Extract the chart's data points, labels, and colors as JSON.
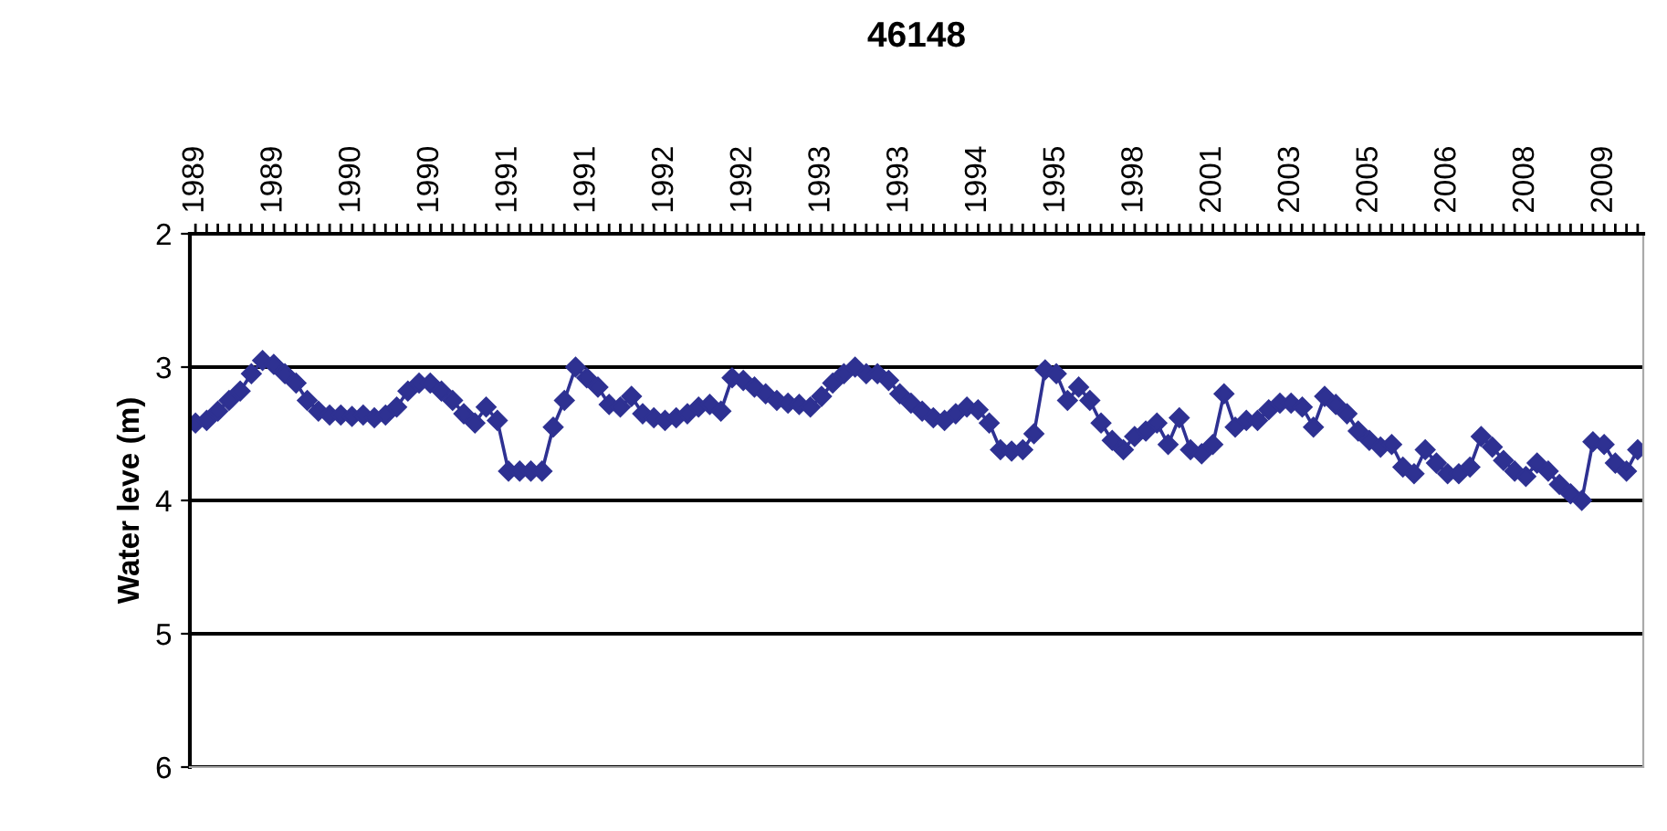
{
  "chart_data": {
    "type": "line",
    "title": "46148",
    "ylabel": "Water leve (m)",
    "categories": [
      "1989",
      null,
      null,
      null,
      null,
      null,
      null,
      "1989",
      null,
      null,
      null,
      null,
      null,
      null,
      "1990",
      null,
      null,
      null,
      null,
      null,
      null,
      "1990",
      null,
      null,
      null,
      null,
      null,
      null,
      "1991",
      null,
      null,
      null,
      null,
      null,
      null,
      "1991",
      null,
      null,
      null,
      null,
      null,
      null,
      "1992",
      null,
      null,
      null,
      null,
      null,
      null,
      "1992",
      null,
      null,
      null,
      null,
      null,
      null,
      "1993",
      null,
      null,
      null,
      null,
      null,
      null,
      "1993",
      null,
      null,
      null,
      null,
      null,
      null,
      "1994",
      null,
      null,
      null,
      null,
      null,
      null,
      "1995",
      null,
      null,
      null,
      null,
      null,
      null,
      "1998",
      null,
      null,
      null,
      null,
      null,
      null,
      "2001",
      null,
      null,
      null,
      null,
      null,
      null,
      "2003",
      null,
      null,
      null,
      null,
      null,
      null,
      "2005",
      null,
      null,
      null,
      null,
      null,
      null,
      "2006",
      null,
      null,
      null,
      null,
      null,
      null,
      "2008",
      null,
      null,
      null,
      null,
      null,
      null,
      "2009",
      null,
      null,
      null
    ],
    "series": [
      {
        "color": "#2e3192",
        "values": [
          3.42,
          3.4,
          3.33,
          3.25,
          3.18,
          3.05,
          2.95,
          2.98,
          3.05,
          3.12,
          3.25,
          3.33,
          3.36,
          3.36,
          3.37,
          3.36,
          3.38,
          3.36,
          3.3,
          3.18,
          3.12,
          3.12,
          3.18,
          3.25,
          3.35,
          3.42,
          3.3,
          3.4,
          3.78,
          3.78,
          3.78,
          3.78,
          3.45,
          3.25,
          3.0,
          3.08,
          3.15,
          3.28,
          3.3,
          3.22,
          3.35,
          3.38,
          3.4,
          3.38,
          3.35,
          3.3,
          3.28,
          3.33,
          3.08,
          3.1,
          3.15,
          3.2,
          3.25,
          3.27,
          3.28,
          3.3,
          3.22,
          3.12,
          3.05,
          3.0,
          3.05,
          3.05,
          3.1,
          3.2,
          3.27,
          3.33,
          3.38,
          3.4,
          3.35,
          3.3,
          3.32,
          3.42,
          3.62,
          3.63,
          3.62,
          3.5,
          3.02,
          3.05,
          3.25,
          3.15,
          3.25,
          3.42,
          3.55,
          3.62,
          3.52,
          3.48,
          3.42,
          3.58,
          3.38,
          3.62,
          3.65,
          3.58,
          3.2,
          3.45,
          3.4,
          3.4,
          3.32,
          3.27,
          3.27,
          3.3,
          3.45,
          3.22,
          3.28,
          3.35,
          3.48,
          3.55,
          3.6,
          3.58,
          3.75,
          3.8,
          3.62,
          3.72,
          3.8,
          3.8,
          3.75,
          3.52,
          3.6,
          3.7,
          3.78,
          3.82,
          3.72,
          3.78,
          3.88,
          3.95,
          4.0,
          3.56,
          3.58,
          3.72,
          3.78,
          3.62
        ]
      }
    ],
    "ylim": [
      6,
      2
    ],
    "yticks": [
      2,
      3,
      4,
      5,
      6
    ],
    "grid": "y",
    "marker": "diamond",
    "line_style": "solid"
  }
}
